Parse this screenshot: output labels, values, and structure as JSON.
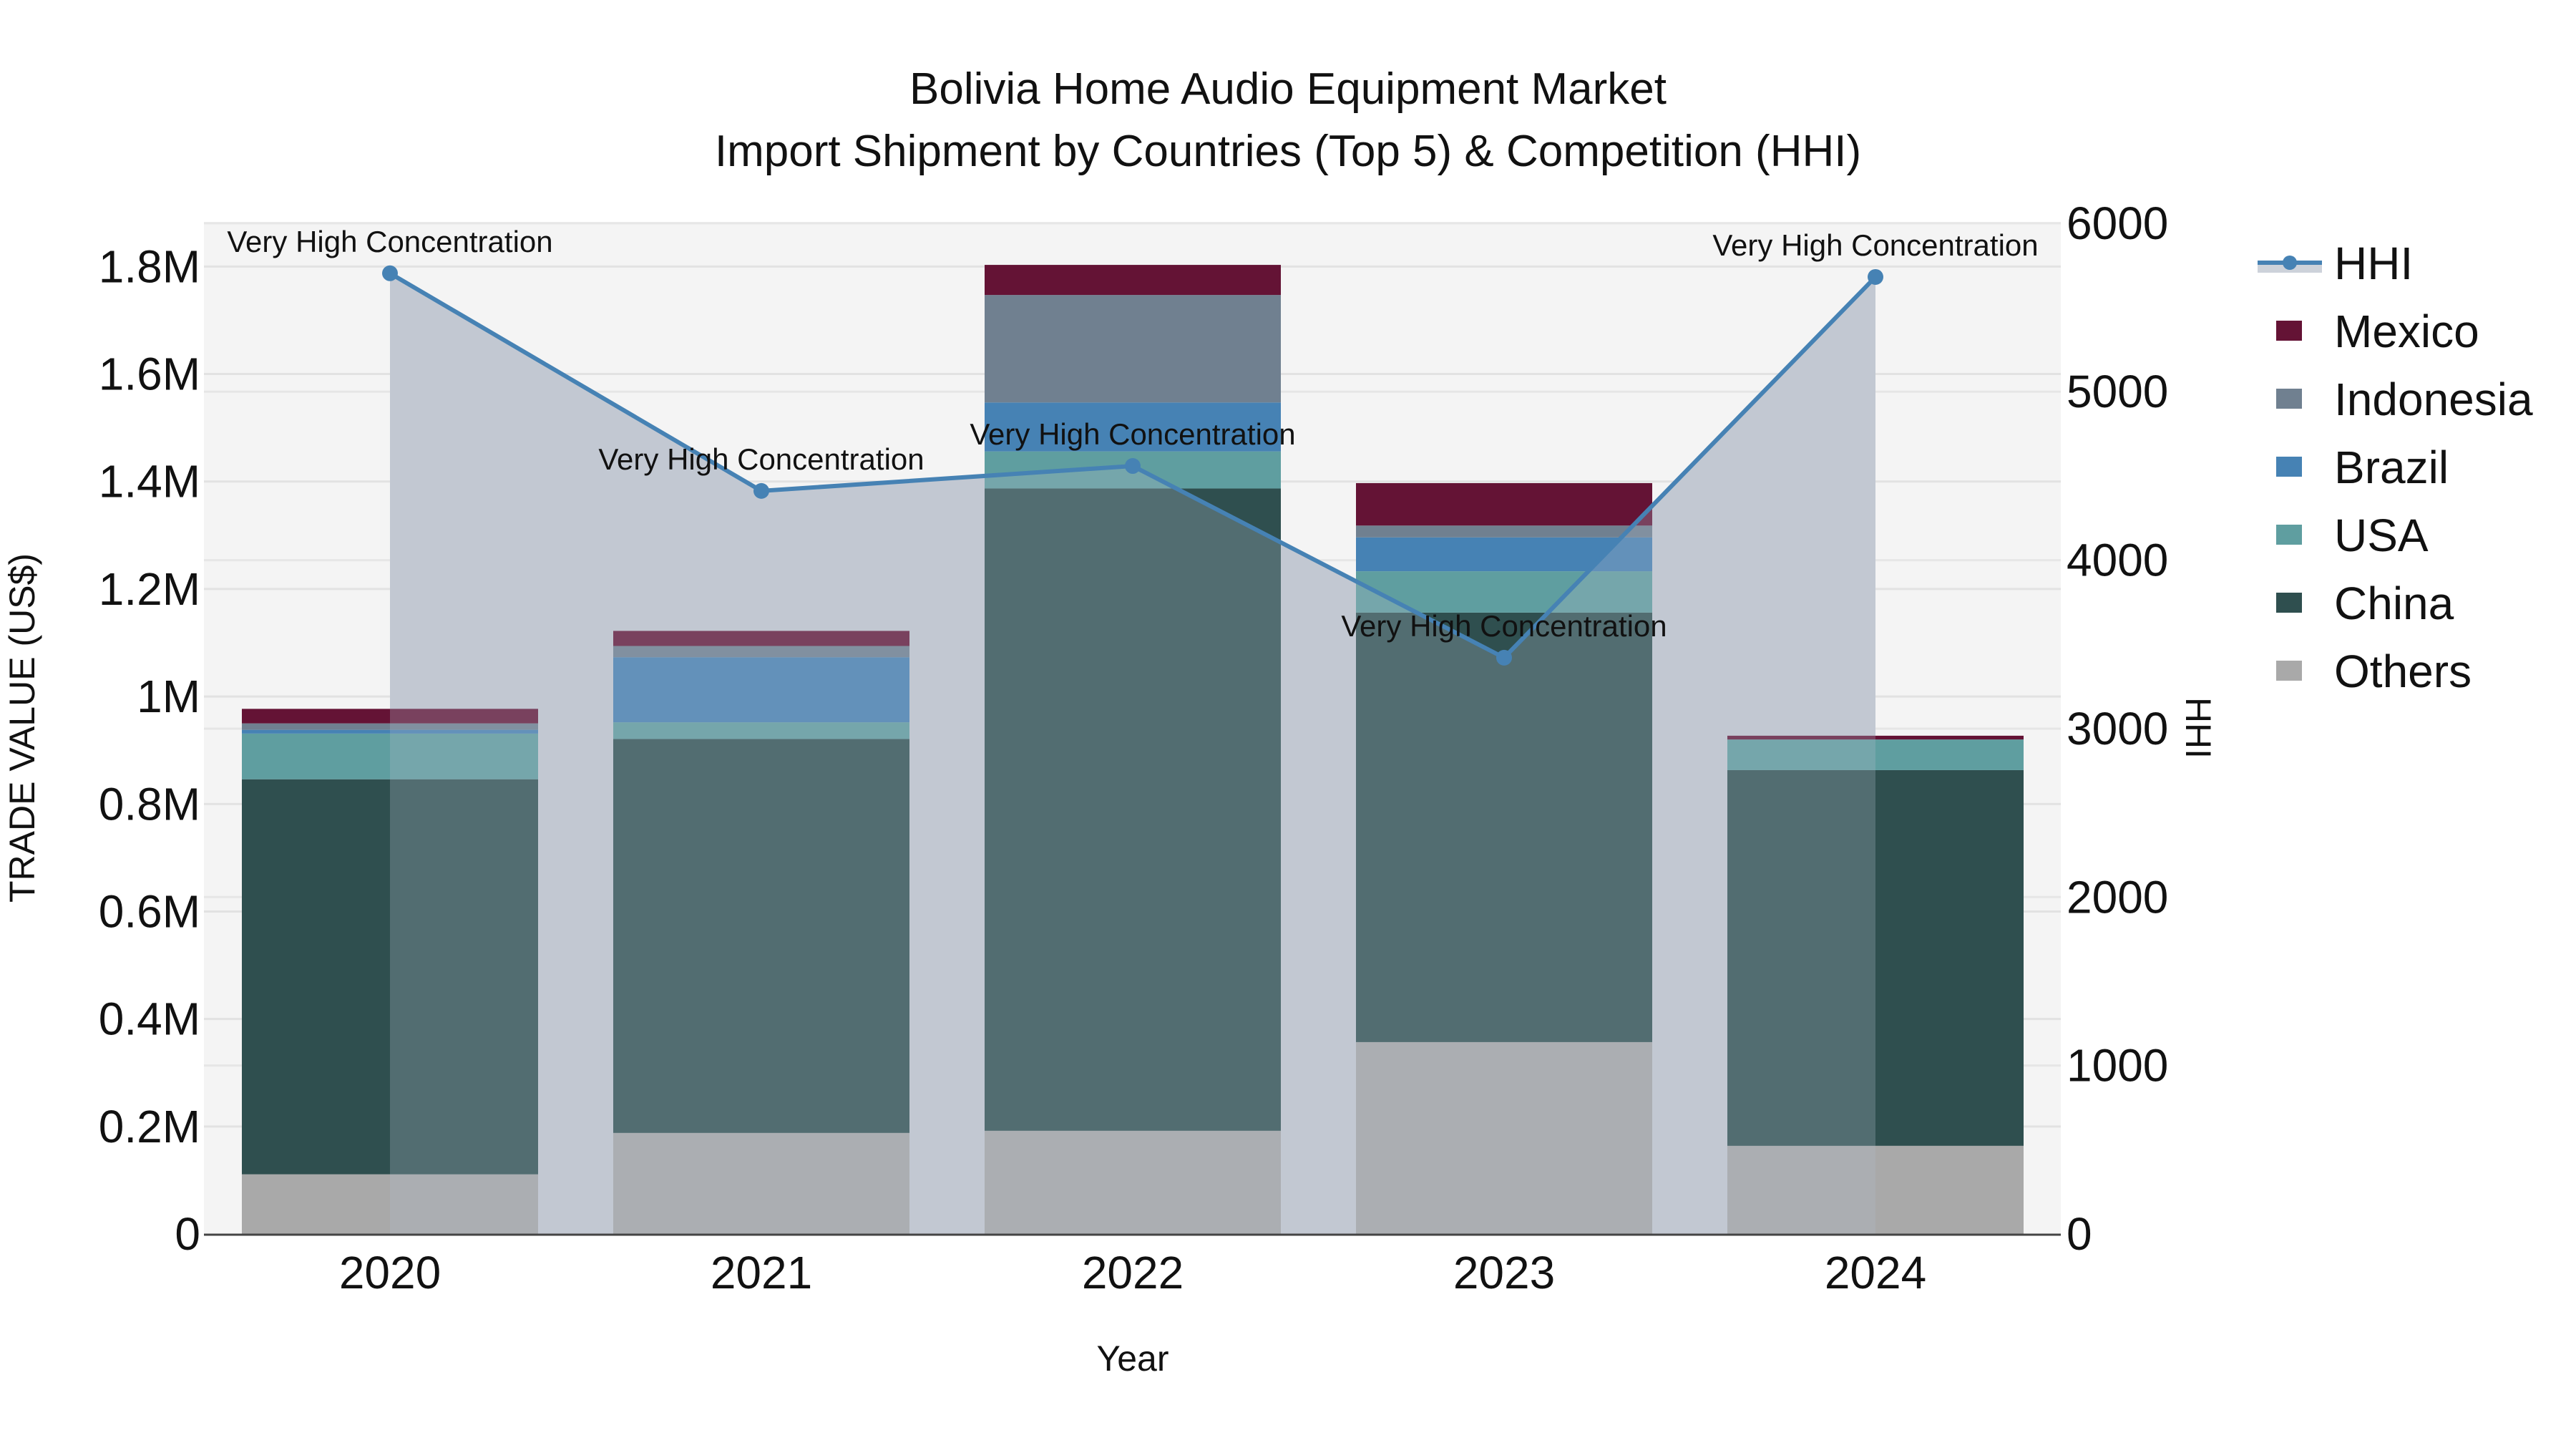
{
  "chart_data": {
    "type": "bar",
    "stacked": true,
    "title": "Bolivia Home Audio Equipment Market",
    "subtitle": "Import Shipment by Countries (Top 5) & Competition (HHI)",
    "xlabel": "Year",
    "ylabel": "TRADE VALUE (US$)",
    "y2label": "HHI",
    "categories": [
      "2020",
      "2021",
      "2022",
      "2023",
      "2024"
    ],
    "ylim": [
      0,
      1883000
    ],
    "y2lim": [
      0,
      6008
    ],
    "yticks": [
      {
        "value": 0,
        "label": "0"
      },
      {
        "value": 200000,
        "label": "0.2M"
      },
      {
        "value": 400000,
        "label": "0.4M"
      },
      {
        "value": 600000,
        "label": "0.6M"
      },
      {
        "value": 800000,
        "label": "0.8M"
      },
      {
        "value": 1000000,
        "label": "1M"
      },
      {
        "value": 1200000,
        "label": "1.2M"
      },
      {
        "value": 1400000,
        "label": "1.4M"
      },
      {
        "value": 1600000,
        "label": "1.6M"
      },
      {
        "value": 1800000,
        "label": "1.8M"
      }
    ],
    "y2ticks": [
      {
        "value": 0,
        "label": "0"
      },
      {
        "value": 1000,
        "label": "1000"
      },
      {
        "value": 2000,
        "label": "2000"
      },
      {
        "value": 3000,
        "label": "3000"
      },
      {
        "value": 4000,
        "label": "4000"
      },
      {
        "value": 5000,
        "label": "5000"
      },
      {
        "value": 6000,
        "label": "6000"
      }
    ],
    "grid": true,
    "legend_position": "right",
    "series": [
      {
        "name": "Others",
        "color": "#A9A9A9",
        "values": [
          111000,
          188000,
          192000,
          357000,
          164000
        ]
      },
      {
        "name": "China",
        "color": "#2F4F4F",
        "values": [
          735000,
          733000,
          1195000,
          799000,
          699000
        ]
      },
      {
        "name": "USA",
        "color": "#5F9EA0",
        "values": [
          85000,
          31000,
          69000,
          77000,
          57000
        ]
      },
      {
        "name": "Brazil",
        "color": "#4682B4",
        "values": [
          7000,
          121000,
          91000,
          63000,
          0
        ]
      },
      {
        "name": "Indonesia",
        "color": "#708090",
        "values": [
          12000,
          21000,
          200000,
          22000,
          0
        ]
      },
      {
        "name": "Mexico",
        "color": "#641335",
        "values": [
          27000,
          28000,
          56000,
          79000,
          7000
        ]
      }
    ],
    "hhi": {
      "name": "HHI",
      "color": "#4682B4",
      "fill": "rgba(176,186,201,0.65)",
      "axis": "right",
      "values": [
        5703,
        4411,
        4559,
        3421,
        5681
      ],
      "annotations": [
        "Very High Concentration",
        "Very High Concentration",
        "Very High Concentration",
        "Very High Concentration",
        "Very High Concentration"
      ]
    }
  },
  "legend": {
    "items": [
      {
        "label": "HHI",
        "color": "#4682B4",
        "kind": "line"
      },
      {
        "label": "Mexico",
        "color": "#641335",
        "kind": "box"
      },
      {
        "label": "Indonesia",
        "color": "#708090",
        "kind": "box"
      },
      {
        "label": "Brazil",
        "color": "#4682B4",
        "kind": "box"
      },
      {
        "label": "USA",
        "color": "#5F9EA0",
        "kind": "box"
      },
      {
        "label": "China",
        "color": "#2F4F4F",
        "kind": "box"
      },
      {
        "label": "Others",
        "color": "#A9A9A9",
        "kind": "box"
      }
    ]
  }
}
